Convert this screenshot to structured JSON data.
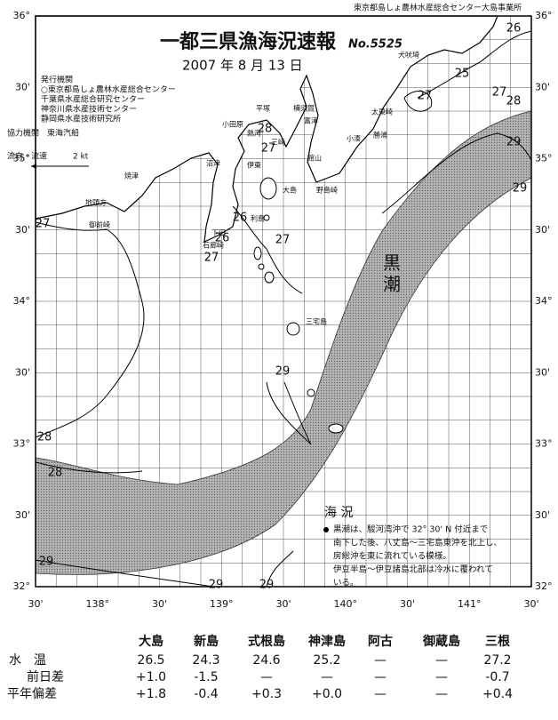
{
  "header": {
    "agency_line": "東京都島しょ農林水産総合センター大島事業所",
    "title": "一都三県漁海況速報",
    "issue_no": "No.5525",
    "date": "2007 年 8 月 13 日",
    "publishers_heading": "発行機関",
    "publishers": [
      "○東京都島しょ農林水産総合センター",
      "千葉県水産総合研究センター",
      "神奈川県水産技術センター",
      "静岡県水産技術研究所"
    ],
    "cooperator": "協力機関　東海汽船",
    "current_legend": "流向・流速",
    "current_speed": "2 kt"
  },
  "map": {
    "lat_labels": [
      "36°",
      "30'",
      "35°",
      "30'",
      "34°",
      "30'",
      "33°",
      "30'",
      "32°"
    ],
    "lon_labels": [
      "30'",
      "138°",
      "30'",
      "139°",
      "30'",
      "140°",
      "30'",
      "141°",
      "30'"
    ],
    "kuroshio_label": "黒潮",
    "isotherm_labels": [
      26,
      25,
      27,
      28,
      29,
      29,
      27,
      28,
      27,
      26,
      26,
      27,
      27,
      29,
      28,
      28,
      29,
      29,
      29,
      27
    ],
    "places": [
      "犬吠埼",
      "太東崎",
      "勝浦",
      "小湊",
      "館山",
      "野島崎",
      "富津",
      "横須賀",
      "三崎",
      "平塚",
      "小田原",
      "熱海",
      "伊東",
      "沼津",
      "焼津",
      "地頭方",
      "御前崎",
      "下田",
      "石廊崎",
      "大島",
      "利島",
      "三宅島"
    ]
  },
  "summary": {
    "heading": "海 況",
    "lines": [
      "黒潮は、駿河湾沖で 32° 30' N 付近まで",
      "南下した後、八丈島～三宅島東沖を北上し、",
      "房総沖を東に流れている模様。",
      "伊豆半島～伊豆諸島北部は冷水に覆われて",
      "いる。"
    ]
  },
  "table": {
    "columns": [
      "大島",
      "新島",
      "式根島",
      "神津島",
      "阿古",
      "御蔵島",
      "三根"
    ],
    "rows": [
      {
        "label": "水　温",
        "values": [
          "26.5",
          "24.3",
          "24.6",
          "25.2",
          "—",
          "—",
          "27.2"
        ]
      },
      {
        "label": "前日差",
        "values": [
          "+1.0",
          "-1.5",
          "—",
          "—",
          "—",
          "—",
          "-0.7"
        ]
      },
      {
        "label": "平年偏差",
        "values": [
          "+1.8",
          "-0.4",
          "+0.3",
          "+0.0",
          "—",
          "—",
          "+0.4"
        ]
      }
    ]
  }
}
